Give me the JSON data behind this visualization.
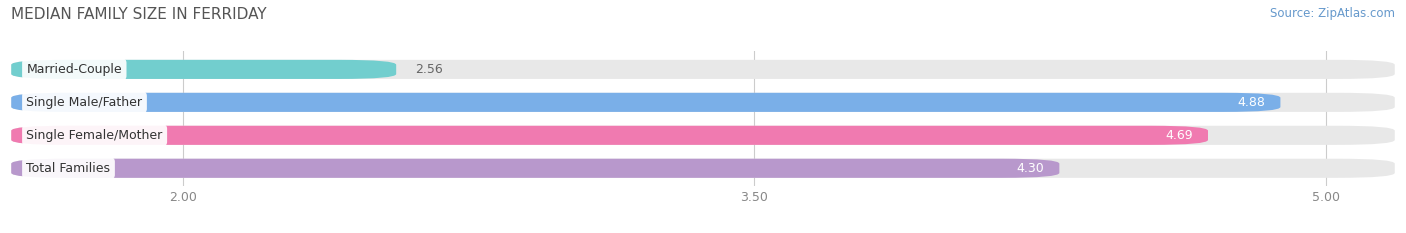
{
  "title": "MEDIAN FAMILY SIZE IN FERRIDAY",
  "source": "Source: ZipAtlas.com",
  "categories": [
    "Married-Couple",
    "Single Male/Father",
    "Single Female/Mother",
    "Total Families"
  ],
  "values": [
    2.56,
    4.88,
    4.69,
    4.3
  ],
  "bar_colors": [
    "#72cece",
    "#7aafe8",
    "#f07ab0",
    "#b898cc"
  ],
  "value_colors": [
    "#666666",
    "#ffffff",
    "#ffffff",
    "#ffffff"
  ],
  "xlim_min": 1.55,
  "xlim_max": 5.18,
  "xticks": [
    2.0,
    3.5,
    5.0
  ],
  "xtick_labels": [
    "2.00",
    "3.50",
    "5.00"
  ],
  "background_color": "#ffffff",
  "bar_bg_color": "#e8e8e8",
  "title_fontsize": 11,
  "source_fontsize": 8.5,
  "cat_fontsize": 9,
  "val_fontsize": 9,
  "bar_height": 0.58,
  "bar_gap": 0.18,
  "figsize": [
    14.06,
    2.33
  ],
  "dpi": 100
}
